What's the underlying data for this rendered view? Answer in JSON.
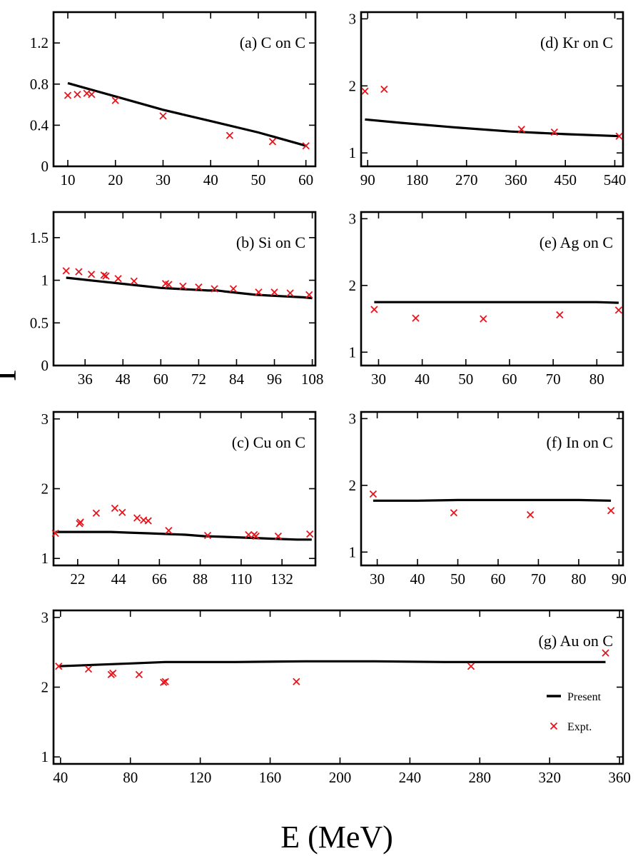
{
  "figure": {
    "ylabel": "Γ",
    "xlabel": "E (MeV)",
    "legend": {
      "present": "Present",
      "expt": "Expt."
    },
    "colors": {
      "line": "#000000",
      "expt": "#e8141b"
    }
  },
  "chart_data": [
    {
      "id": "a",
      "type": "line",
      "title": "(a) C on C",
      "xlim": [
        7,
        62
      ],
      "ylim": [
        0,
        1.5
      ],
      "xticks": [
        10,
        20,
        30,
        40,
        50,
        60
      ],
      "yticks": [
        0,
        0.4,
        0.8,
        1.2
      ],
      "yticklabels": [
        "0",
        "0.4",
        "0.8",
        "1.2"
      ],
      "present": {
        "x": [
          10,
          20,
          30,
          40,
          50,
          60
        ],
        "y": [
          0.81,
          0.68,
          0.55,
          0.44,
          0.33,
          0.2
        ]
      },
      "expt": {
        "x": [
          10,
          12,
          14,
          15,
          20,
          30,
          44,
          53,
          60
        ],
        "y": [
          0.69,
          0.7,
          0.71,
          0.7,
          0.64,
          0.49,
          0.3,
          0.24,
          0.2
        ]
      }
    },
    {
      "id": "b",
      "type": "line",
      "title": "(b) Si on C",
      "xlim": [
        26,
        109
      ],
      "ylim": [
        0,
        1.8
      ],
      "xticks": [
        36,
        48,
        60,
        72,
        84,
        96,
        108
      ],
      "yticks": [
        0,
        0.5,
        1,
        1.5
      ],
      "yticklabels": [
        "0",
        "0.5",
        "1",
        "1.5"
      ],
      "present": {
        "x": [
          30,
          35,
          40,
          45,
          50,
          55,
          60,
          65,
          70,
          75,
          78,
          80,
          85,
          90,
          95,
          100,
          105,
          108
        ],
        "y": [
          1.03,
          1.01,
          0.99,
          0.97,
          0.95,
          0.93,
          0.91,
          0.9,
          0.89,
          0.88,
          0.88,
          0.87,
          0.85,
          0.83,
          0.82,
          0.81,
          0.8,
          0.79
        ]
      },
      "expt": {
        "x": [
          30,
          34,
          38,
          42,
          42.6,
          46.5,
          51.5,
          61.5,
          62.5,
          67,
          72,
          77,
          83,
          91,
          96,
          101,
          107
        ],
        "y": [
          1.11,
          1.1,
          1.07,
          1.06,
          1.05,
          1.02,
          0.99,
          0.96,
          0.95,
          0.93,
          0.92,
          0.9,
          0.9,
          0.86,
          0.86,
          0.85,
          0.83
        ]
      }
    },
    {
      "id": "c",
      "type": "line",
      "title": "(c) Cu on C",
      "xlim": [
        9,
        150
      ],
      "ylim": [
        0.9,
        3.1
      ],
      "xticks": [
        22,
        44,
        66,
        88,
        110,
        132
      ],
      "yticks": [
        1,
        2,
        3
      ],
      "yticklabels": [
        "1",
        "2",
        "3"
      ],
      "present": {
        "x": [
          10,
          20,
          30,
          40,
          50,
          60,
          70,
          80,
          90,
          100,
          110,
          120,
          130,
          140,
          148
        ],
        "y": [
          1.38,
          1.38,
          1.38,
          1.38,
          1.37,
          1.36,
          1.35,
          1.34,
          1.32,
          1.31,
          1.3,
          1.29,
          1.28,
          1.27,
          1.27
        ]
      },
      "expt": {
        "x": [
          10,
          23,
          23.5,
          32,
          42,
          46,
          54,
          57.5,
          60,
          71,
          92,
          114,
          117,
          118,
          130,
          147
        ],
        "y": [
          1.36,
          1.5,
          1.52,
          1.65,
          1.72,
          1.66,
          1.58,
          1.55,
          1.54,
          1.4,
          1.33,
          1.34,
          1.34,
          1.32,
          1.32,
          1.35
        ]
      }
    },
    {
      "id": "d",
      "type": "line",
      "title": "(d) Kr on C",
      "xlim": [
        78,
        555
      ],
      "ylim": [
        0.8,
        3.1
      ],
      "xticks": [
        90,
        180,
        270,
        360,
        450,
        540
      ],
      "yticks": [
        1,
        2,
        3
      ],
      "yticklabels": [
        "1",
        "2",
        "3"
      ],
      "present": {
        "x": [
          85,
          150,
          250,
          350,
          450,
          548
        ],
        "y": [
          1.5,
          1.45,
          1.38,
          1.32,
          1.28,
          1.25
        ]
      },
      "expt": {
        "x": [
          85,
          120,
          370,
          430,
          548
        ],
        "y": [
          1.92,
          1.95,
          1.35,
          1.31,
          1.25
        ]
      }
    },
    {
      "id": "e",
      "type": "line",
      "title": "(e) Ag on C",
      "xlim": [
        26,
        86
      ],
      "ylim": [
        0.8,
        3.1
      ],
      "xticks": [
        30,
        40,
        50,
        60,
        70,
        80
      ],
      "yticks": [
        1,
        2,
        3
      ],
      "yticklabels": [
        "1",
        "2",
        "3"
      ],
      "present": {
        "x": [
          29,
          40,
          50,
          60,
          70,
          80,
          85
        ],
        "y": [
          1.75,
          1.75,
          1.75,
          1.75,
          1.75,
          1.75,
          1.74
        ]
      },
      "expt": {
        "x": [
          29,
          38.5,
          54,
          71.5,
          85
        ],
        "y": [
          1.64,
          1.51,
          1.5,
          1.56,
          1.63
        ]
      }
    },
    {
      "id": "f",
      "type": "line",
      "title": "(f) In on C",
      "xlim": [
        26,
        91
      ],
      "ylim": [
        0.8,
        3.1
      ],
      "xticks": [
        30,
        40,
        50,
        60,
        70,
        80,
        90
      ],
      "yticks": [
        1,
        2,
        3
      ],
      "yticklabels": [
        "1",
        "2",
        "3"
      ],
      "present": {
        "x": [
          29,
          40,
          50,
          60,
          70,
          80,
          88
        ],
        "y": [
          1.77,
          1.77,
          1.78,
          1.78,
          1.78,
          1.78,
          1.77
        ]
      },
      "expt": {
        "x": [
          29,
          49,
          68,
          88
        ],
        "y": [
          1.87,
          1.59,
          1.56,
          1.62
        ]
      }
    },
    {
      "id": "g",
      "type": "line",
      "title": "(g) Au on C",
      "xlim": [
        36,
        362
      ],
      "ylim": [
        0.9,
        3.1
      ],
      "xticks": [
        40,
        80,
        120,
        160,
        200,
        240,
        280,
        320,
        360
      ],
      "yticks": [
        1,
        2,
        3
      ],
      "yticklabels": [
        "1",
        "2",
        "3"
      ],
      "present": {
        "x": [
          39,
          60,
          80,
          100,
          140,
          180,
          220,
          260,
          300,
          340,
          352
        ],
        "y": [
          2.3,
          2.32,
          2.34,
          2.36,
          2.36,
          2.37,
          2.37,
          2.36,
          2.36,
          2.36,
          2.36
        ]
      },
      "expt": {
        "x": [
          39,
          56,
          69,
          70,
          85,
          99,
          100,
          175,
          275,
          352
        ],
        "y": [
          2.3,
          2.26,
          2.18,
          2.2,
          2.18,
          2.07,
          2.08,
          2.08,
          2.3,
          2.49
        ]
      }
    }
  ]
}
